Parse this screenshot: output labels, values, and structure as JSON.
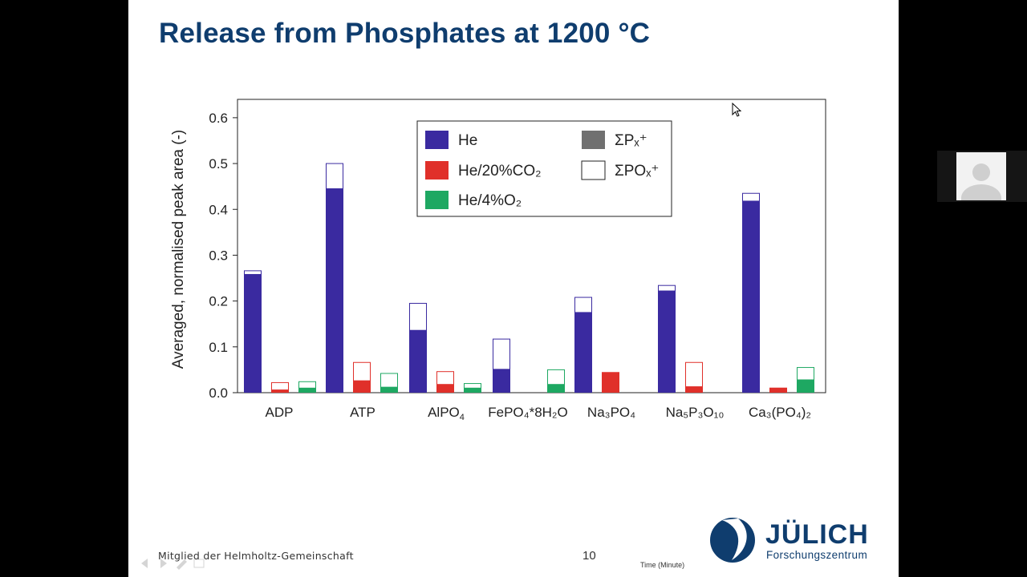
{
  "slide": {
    "title": "Release from Phosphates at 1200 °C",
    "footer_left": "Mitglied der Helmholtz-Gemeinschaft",
    "page_number": "10",
    "time_label": "Time (Minute)",
    "logo_text": "JÜLICH",
    "logo_subtitle": "Forschungszentrum"
  },
  "colors": {
    "he": "#3a2aa0",
    "he_co2": "#e0302a",
    "he_o2": "#1ea862",
    "px": "#707070",
    "pox": "#ffffff",
    "title": "#0f3d6e"
  },
  "chart_data": {
    "type": "bar",
    "stacked": true,
    "title": "",
    "ylabel": "Averaged, normalised peak area (-)",
    "xlabel": "",
    "ylim": [
      0,
      0.64
    ],
    "yticks": [
      "0.0",
      "0.1",
      "0.2",
      "0.3",
      "0.4",
      "0.5",
      "0.6"
    ],
    "yticks_values": [
      0,
      0.1,
      0.2,
      0.3,
      0.4,
      0.5,
      0.6
    ],
    "categories": [
      {
        "base": "ADP",
        "sub": ""
      },
      {
        "base": "ATP",
        "sub": ""
      },
      {
        "base": "AlPO",
        "sub": "4"
      },
      {
        "base": "FePO₄*8H₂O",
        "sub": ""
      },
      {
        "base": "Na₃PO₄",
        "sub": ""
      },
      {
        "base": "Na₅P₃O₁₀",
        "sub": ""
      },
      {
        "base": "Ca₃(PO₄)₂",
        "sub": ""
      }
    ],
    "carrier_gases": [
      "He",
      "He/20%CO₂",
      "He/4%O₂"
    ],
    "species": [
      "ΣPₓ⁺",
      "ΣPOₓ⁺"
    ],
    "px_values": [
      [
        0.258,
        0.006,
        0.01
      ],
      [
        0.445,
        0.026,
        0.012
      ],
      [
        0.136,
        0.018,
        0.01
      ],
      [
        0.051,
        null,
        0.018
      ],
      [
        0.175,
        0.045,
        null
      ],
      [
        0.222,
        0.013,
        null
      ],
      [
        0.418,
        0.011,
        0.028
      ]
    ],
    "pox_values": [
      [
        0.008,
        0.016,
        0.014
      ],
      [
        0.055,
        0.04,
        0.03
      ],
      [
        0.059,
        0.028,
        0.01
      ],
      [
        0.066,
        null,
        0.032
      ],
      [
        0.033,
        0.0,
        null
      ],
      [
        0.012,
        0.053,
        null
      ],
      [
        0.017,
        0.0,
        0.027
      ]
    ],
    "legend": {
      "placement": "top-center",
      "entries": [
        {
          "key": "he",
          "label": "He"
        },
        {
          "key": "he_co2",
          "label": "He/20%CO₂"
        },
        {
          "key": "he_o2",
          "label": "He/4%O₂"
        },
        {
          "key": "px",
          "label": "ΣPₓ⁺"
        },
        {
          "key": "pox",
          "label": "ΣPOₓ⁺"
        }
      ]
    },
    "grid": false
  }
}
